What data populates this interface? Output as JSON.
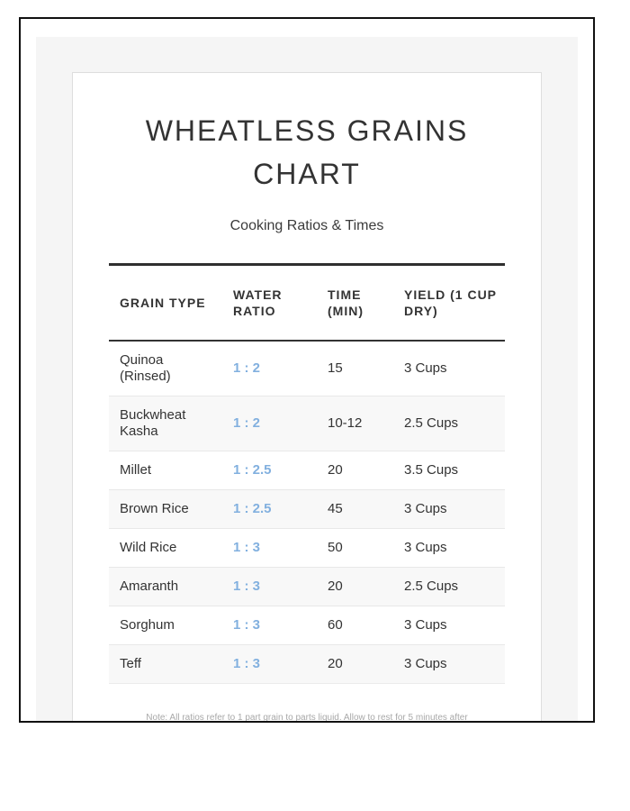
{
  "header": {
    "title": "WHEATLESS GRAINS CHART",
    "subtitle": "Cooking Ratios & Times"
  },
  "table": {
    "headers": [
      "GRAIN TYPE",
      "WATER RATIO",
      "TIME (MIN)",
      "YIELD (1 CUP DRY)"
    ],
    "rows": [
      {
        "grain": "Quinoa (Rinsed)",
        "ratio": "1 : 2",
        "time": "15",
        "yield": "3 Cups"
      },
      {
        "grain": "Buckwheat Kasha",
        "ratio": "1 : 2",
        "time": "10-12",
        "yield": "2.5 Cups"
      },
      {
        "grain": "Millet",
        "ratio": "1 : 2.5",
        "time": "20",
        "yield": "3.5 Cups"
      },
      {
        "grain": "Brown Rice",
        "ratio": "1 : 2.5",
        "time": "45",
        "yield": "3 Cups"
      },
      {
        "grain": "Wild Rice",
        "ratio": "1 : 3",
        "time": "50",
        "yield": "3 Cups"
      },
      {
        "grain": "Amaranth",
        "ratio": "1 : 3",
        "time": "20",
        "yield": "2.5 Cups"
      },
      {
        "grain": "Sorghum",
        "ratio": "1 : 3",
        "time": "60",
        "yield": "3 Cups"
      },
      {
        "grain": "Teff",
        "ratio": "1 : 3",
        "time": "20",
        "yield": "3 Cups"
      }
    ]
  },
  "footer": {
    "note": "Note: All ratios refer to 1 part grain to parts liquid. Allow to rest for 5 minutes after"
  },
  "colors": {
    "ratio_accent": "#82b0df",
    "zebra_row": "#f8f8f8",
    "canvas_background": "#f5f5f5",
    "frame_border": "#111111",
    "heading_text": "#333333",
    "note_text": "#a8a8a8"
  }
}
